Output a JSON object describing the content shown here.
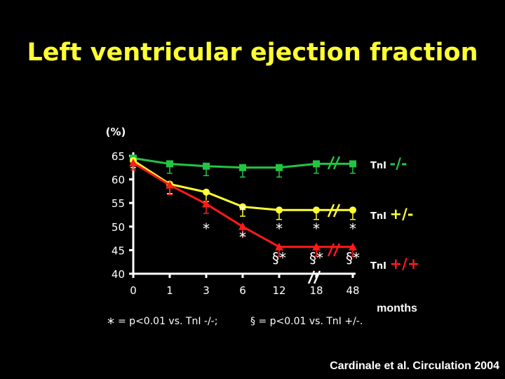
{
  "title": "Left ventricular ejection fraction",
  "citation": "Cardinale et al. Circulation 2004",
  "colors": {
    "green": "#22c544",
    "yellow": "#ffff33",
    "red": "#ff1a1a",
    "axis": "#ffffff"
  },
  "chart_data": {
    "type": "line",
    "ylabel": "(%)",
    "xlabel": "months",
    "ylim": [
      40,
      65
    ],
    "yticks": [
      65,
      60,
      55,
      50,
      45,
      40
    ],
    "categories": [
      "0",
      "1",
      "3",
      "6",
      "12",
      "18",
      "48"
    ],
    "series": [
      {
        "name": "TnI -/-",
        "color": "#22c544",
        "marker": "square",
        "values": [
          64.5,
          63.3,
          62.8,
          62.5,
          62.5,
          63.3,
          63.3
        ],
        "errors": [
          0,
          2,
          2,
          2,
          2,
          2,
          2
        ]
      },
      {
        "name": "TnI +/-",
        "color": "#ffff33",
        "marker": "circle",
        "values": [
          64,
          59,
          57.3,
          54.2,
          53.5,
          53.5,
          53.5
        ],
        "errors": [
          1.5,
          2,
          2,
          2,
          2,
          2,
          2
        ]
      },
      {
        "name": "TnI +/+",
        "color": "#ff1a1a",
        "marker": "triangle",
        "values": [
          63.5,
          58.8,
          54.8,
          50,
          45.7,
          45.7,
          45.7
        ],
        "errors": [
          1.5,
          2,
          2,
          2,
          2,
          2,
          2
        ]
      }
    ],
    "annotations": [
      {
        "x": "3",
        "y": 48.5,
        "text": "*"
      },
      {
        "x": "6",
        "y": 52.3,
        "text": "*"
      },
      {
        "x": "6",
        "y": 46.7,
        "text": "*"
      },
      {
        "x": "12",
        "y": 48.5,
        "text": "*"
      },
      {
        "x": "18",
        "y": 48.5,
        "text": "*"
      },
      {
        "x": "48",
        "y": 48.5,
        "text": "*"
      },
      {
        "x": "12",
        "y": 42.3,
        "text": "§*"
      },
      {
        "x": "18",
        "y": 42.3,
        "text": "§*"
      },
      {
        "x": "48",
        "y": 42.3,
        "text": "§*"
      }
    ],
    "footnote_star": "= p<0.01 vs. TnI -/-;",
    "footnote_section": "§ = p<0.01 vs. TnI +/-."
  }
}
